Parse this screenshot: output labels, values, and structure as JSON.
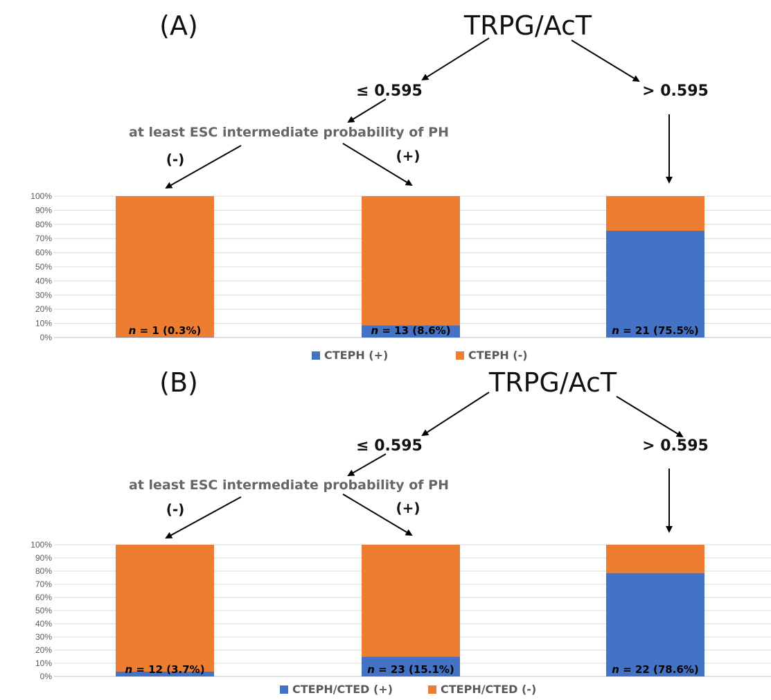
{
  "panels": [
    {
      "panel_label": "(A)",
      "tree": {
        "root": "TRPG/AcT",
        "low_branch": "≤ 0.595",
        "high_branch": "> 0.595",
        "sub_node": "at least ESC intermediate probability of PH",
        "sub_negative": "(-)",
        "sub_positive": "(+)"
      }
    },
    {
      "panel_label": "(B)",
      "tree": {
        "root": "TRPG/AcT",
        "low_branch": "≤ 0.595",
        "high_branch": "> 0.595",
        "sub_node": "at least ESC intermediate probability of PH",
        "sub_negative": "(-)",
        "sub_positive": "(+)"
      }
    }
  ],
  "chart_data": [
    {
      "type": "bar",
      "stacked": true,
      "percent": true,
      "ylim": [
        0,
        100
      ],
      "y_ticks": [
        "0%",
        "10%",
        "20%",
        "30%",
        "40%",
        "50%",
        "60%",
        "70%",
        "80%",
        "90%",
        "100%"
      ],
      "grid": true,
      "legend_position": "bottom",
      "series": [
        {
          "name": "CTEPH (+)",
          "color": "#4472C4",
          "values": [
            0.3,
            8.6,
            75.5
          ]
        },
        {
          "name": "CTEPH (-)",
          "color": "#ED7D31",
          "values": [
            99.7,
            91.4,
            24.5
          ]
        }
      ],
      "data_labels": [
        {
          "n_symbol": "n",
          "text": " = 1 (0.3%)"
        },
        {
          "n_symbol": "n",
          "text": " = 13 (8.6%)"
        },
        {
          "n_symbol": "n",
          "text": " = 21 (75.5%)"
        }
      ]
    },
    {
      "type": "bar",
      "stacked": true,
      "percent": true,
      "ylim": [
        0,
        100
      ],
      "y_ticks": [
        "0%",
        "10%",
        "20%",
        "30%",
        "40%",
        "50%",
        "60%",
        "70%",
        "80%",
        "90%",
        "100%"
      ],
      "grid": true,
      "legend_position": "bottom",
      "series": [
        {
          "name": "CTEPH/CTED (+)",
          "color": "#4472C4",
          "values": [
            3.7,
            15.1,
            78.6
          ]
        },
        {
          "name": "CTEPH/CTED (-)",
          "color": "#ED7D31",
          "values": [
            96.3,
            84.9,
            21.4
          ]
        }
      ],
      "data_labels": [
        {
          "n_symbol": "n",
          "text": " = 12 (3.7%)"
        },
        {
          "n_symbol": "n",
          "text": " = 23 (15.1%)"
        },
        {
          "n_symbol": "n",
          "text": " = 22 (78.6%)"
        }
      ]
    }
  ]
}
